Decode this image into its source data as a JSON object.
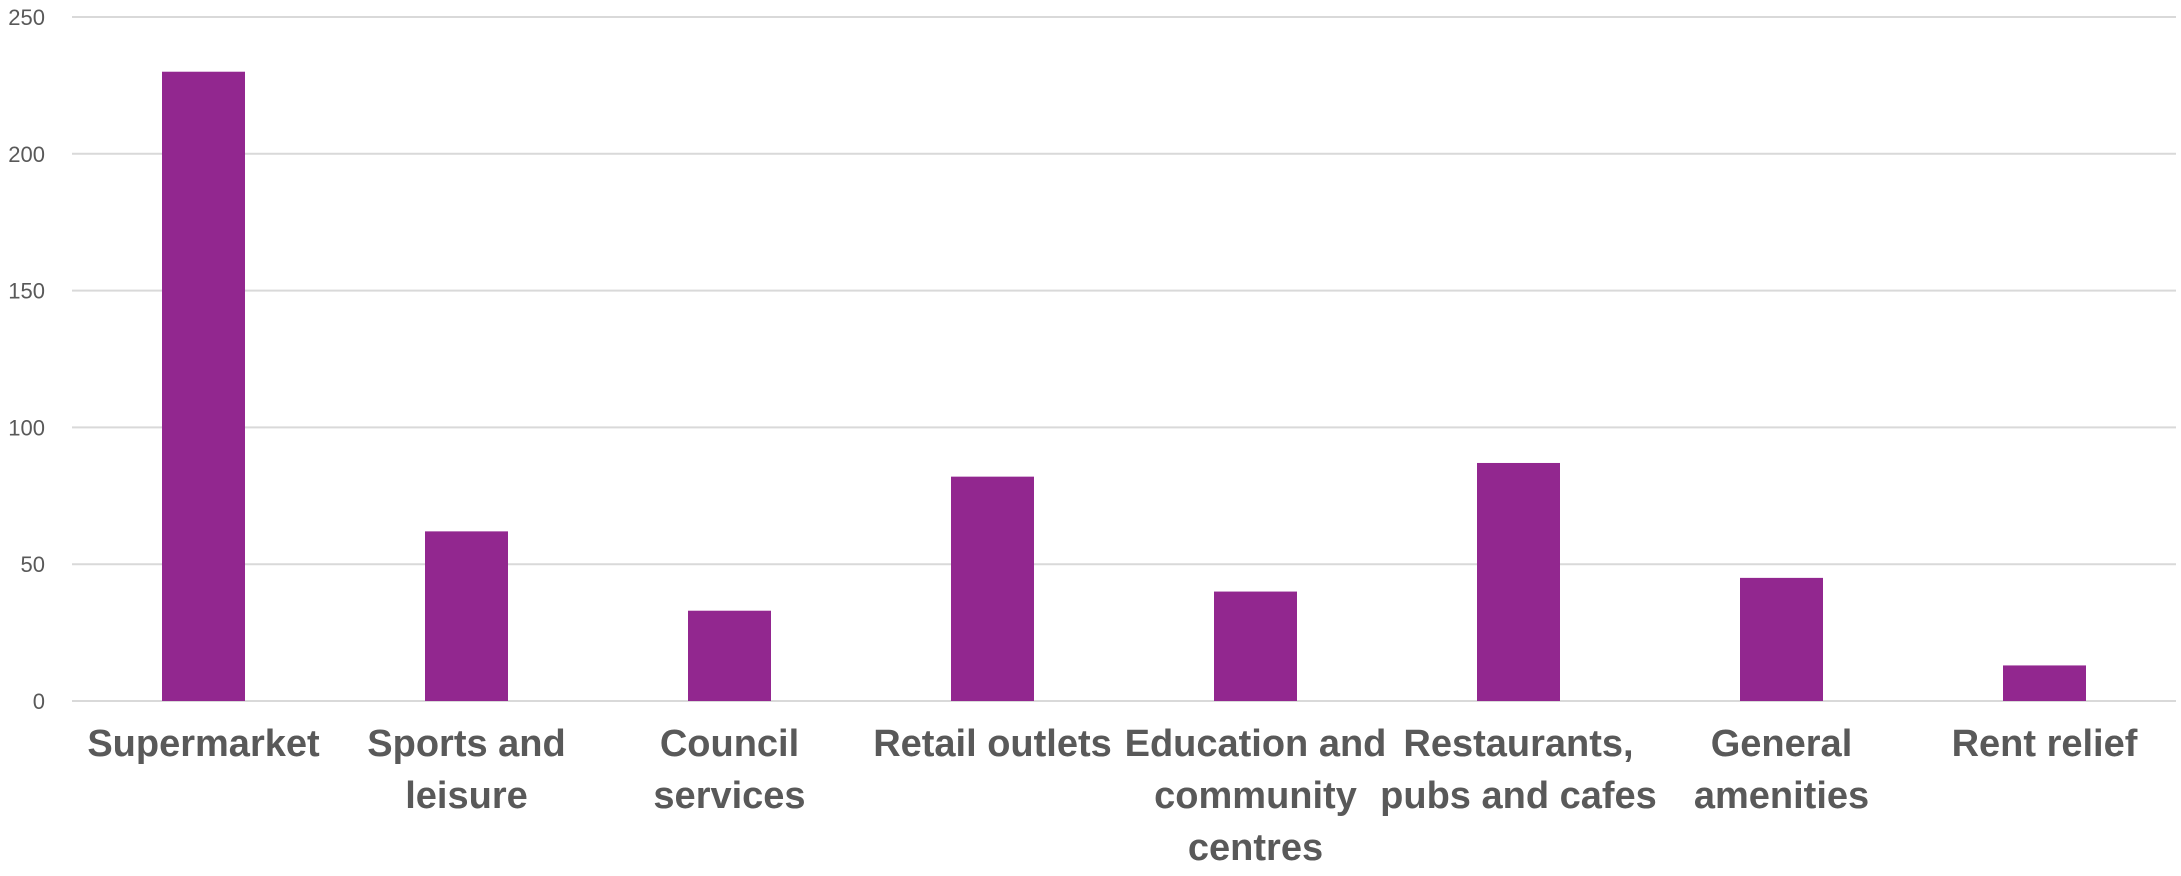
{
  "chart_data": {
    "type": "bar",
    "title": "",
    "xlabel": "",
    "ylabel": "",
    "ylim": [
      0,
      250
    ],
    "yticks": [
      0,
      50,
      100,
      150,
      200,
      250
    ],
    "grid": true,
    "legend": "none",
    "bar_color": "#92278f",
    "gridline_color": "#d9d9d9",
    "label_color": "#595959",
    "categories": [
      [
        "Supermarket"
      ],
      [
        "Sports and",
        "leisure"
      ],
      [
        "Council",
        "services"
      ],
      [
        "Retail outlets"
      ],
      [
        "Education and",
        "community",
        "centres"
      ],
      [
        "Restaurants,",
        "pubs and cafes"
      ],
      [
        "General",
        "amenities"
      ],
      [
        "Rent relief"
      ]
    ],
    "values": [
      230,
      62,
      33,
      82,
      40,
      87,
      45,
      13
    ]
  }
}
